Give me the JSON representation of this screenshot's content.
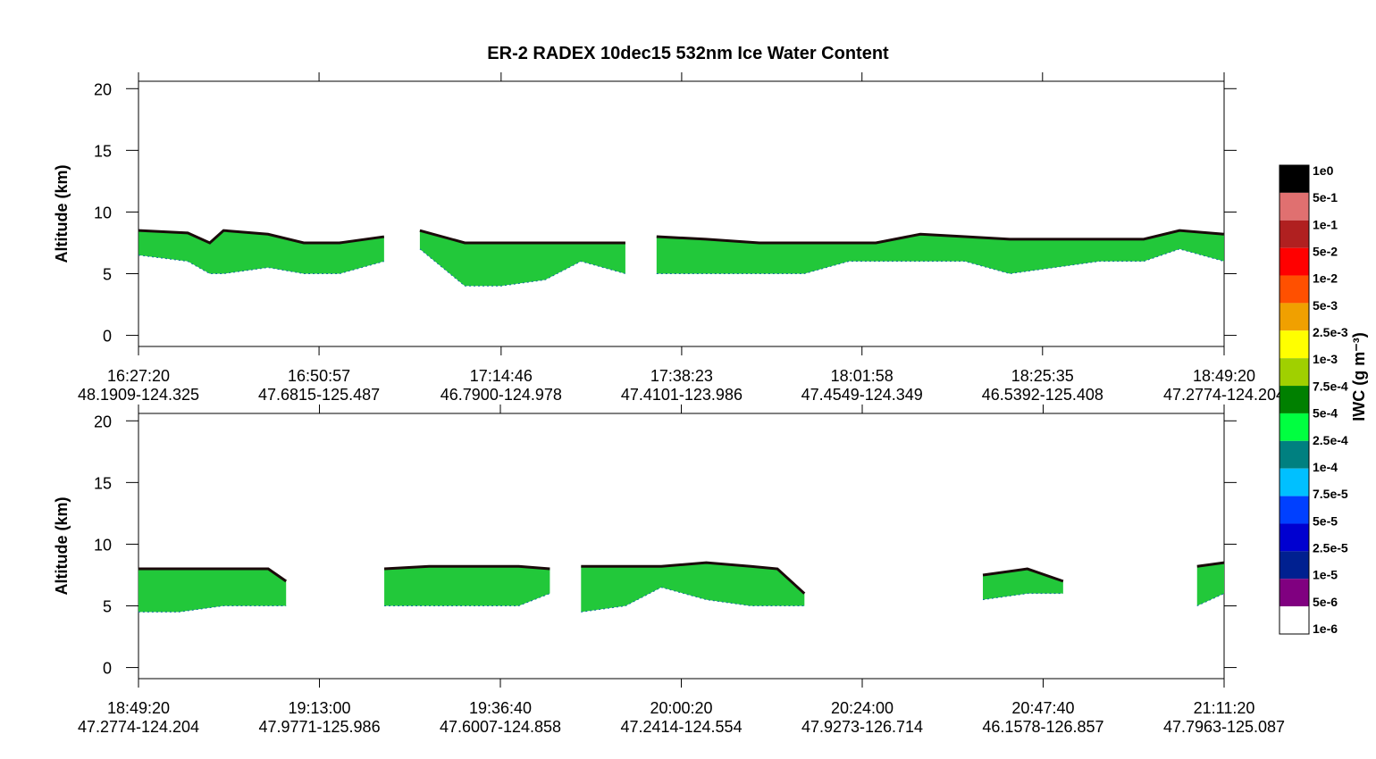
{
  "chart_data": [
    {
      "type": "area",
      "title": "ER-2  RADEX  10dec15  532nm Ice Water Content",
      "ylabel": "Altitude (km)",
      "xlim": [
        16.4556,
        18.8222
      ],
      "ylim": [
        -0.9,
        20.6
      ],
      "yticks": [
        0,
        5,
        10,
        15,
        20
      ],
      "xticks": [
        {
          "value": 16.4556,
          "label": "16:27:20"
        },
        {
          "value": 16.8492,
          "label": "16:50:57"
        },
        {
          "value": 17.2461,
          "label": "17:14:46"
        },
        {
          "value": 17.6397,
          "label": "17:38:23"
        },
        {
          "value": 18.0328,
          "label": "18:01:58"
        },
        {
          "value": 18.4264,
          "label": "18:25:35"
        },
        {
          "value": 18.8222,
          "label": "18:49:20"
        }
      ],
      "xtick_locations": [
        "48.1909-124.325",
        "47.6815-125.487",
        "46.7900-124.978",
        "47.4101-123.986",
        "47.4549-124.349",
        "46.5392-125.408",
        "47.2774-124.204"
      ],
      "x": [
        16.456,
        16.563,
        16.611,
        16.641,
        16.738,
        16.816,
        16.894,
        16.991,
        17.02,
        17.069,
        17.167,
        17.245,
        17.342,
        17.42,
        17.517,
        17.556,
        17.585,
        17.693,
        17.809,
        17.907,
        18.004,
        18.063,
        18.16,
        18.257,
        18.355,
        18.452,
        18.55,
        18.647,
        18.725,
        18.822
      ],
      "series": [
        {
          "color": "#22c83a",
          "values": [
            8.5,
            8.3,
            7.5,
            8.5,
            8.2,
            7.5,
            7.5,
            8,
            null,
            8.5,
            7.5,
            7.5,
            7.5,
            7.5,
            7.5,
            null,
            8,
            7.8,
            7.5,
            7.5,
            7.5,
            7.5,
            8.2,
            8,
            7.8,
            7.8,
            7.8,
            7.8,
            8.5,
            8.2
          ]
        },
        {
          "color": "#1a0a0a",
          "values": [
            6.5,
            6,
            5,
            5,
            5.5,
            5,
            5,
            6,
            null,
            7,
            4,
            4,
            4.5,
            6,
            5,
            null,
            5,
            5,
            5,
            5,
            6,
            6,
            6,
            6,
            5,
            5.5,
            6,
            6,
            7,
            6
          ]
        }
      ],
      "colorbar": {
        "label": "IWC (g m⁻³)",
        "levels": [
          "1e0",
          "5e-1",
          "1e-1",
          "5e-2",
          "1e-2",
          "5e-3",
          "2.5e-3",
          "1e-3",
          "7.5e-4",
          "5e-4",
          "2.5e-4",
          "1e-4",
          "7.5e-5",
          "5e-5",
          "2.5e-5",
          "1e-5",
          "5e-6",
          "1e-6"
        ],
        "colors": [
          "#000000",
          "#e07070",
          "#b02020",
          "#ff0000",
          "#ff5000",
          "#f0a000",
          "#ffff00",
          "#a0d000",
          "#008000",
          "#00ff40",
          "#008080",
          "#00c0ff",
          "#0040ff",
          "#0000d0",
          "#002090",
          "#800080",
          "#ffffff"
        ]
      }
    },
    {
      "type": "area",
      "ylabel": "Altitude (km)",
      "xlim": [
        18.8222,
        21.1889
      ],
      "ylim": [
        -0.9,
        20.6
      ],
      "yticks": [
        0,
        5,
        10,
        15,
        20
      ],
      "xticks": [
        {
          "value": 18.8222,
          "label": "18:49:20"
        },
        {
          "value": 19.2167,
          "label": "19:13:00"
        },
        {
          "value": 19.6111,
          "label": "19:36:40"
        },
        {
          "value": 20.0056,
          "label": "20:00:20"
        },
        {
          "value": 20.4,
          "label": "20:24:00"
        },
        {
          "value": 20.7944,
          "label": "20:47:40"
        },
        {
          "value": 21.1889,
          "label": "21:11:20"
        }
      ],
      "xtick_locations": [
        "47.2774-124.204",
        "47.9771-125.986",
        "47.6007-124.858",
        "47.2414-124.554",
        "47.9273-126.714",
        "46.1578-126.857",
        "47.7963-125.087"
      ],
      "x": [
        18.822,
        18.91,
        19.007,
        19.105,
        19.144,
        19.163,
        19.358,
        19.456,
        19.553,
        19.651,
        19.719,
        19.748,
        19.787,
        19.884,
        19.962,
        20.06,
        20.157,
        20.215,
        20.274,
        20.313,
        20.663,
        20.76,
        20.838,
        20.916,
        21.13,
        21.189
      ],
      "series": [
        {
          "color": "#22c83a",
          "values": [
            8,
            8,
            8,
            8,
            7,
            null,
            8,
            8.2,
            8.2,
            8.2,
            8,
            null,
            8.2,
            8.2,
            8.2,
            8.5,
            8.2,
            8,
            6,
            null,
            7.5,
            8,
            7,
            null,
            8.2,
            8.5
          ]
        },
        {
          "color": "#1a0a0a",
          "values": [
            4.5,
            4.5,
            5,
            5,
            5,
            null,
            5,
            5,
            5,
            5,
            6,
            null,
            4.5,
            5,
            6.5,
            5.5,
            5,
            5,
            5,
            null,
            5.5,
            6,
            6,
            null,
            5,
            6
          ]
        }
      ]
    }
  ]
}
